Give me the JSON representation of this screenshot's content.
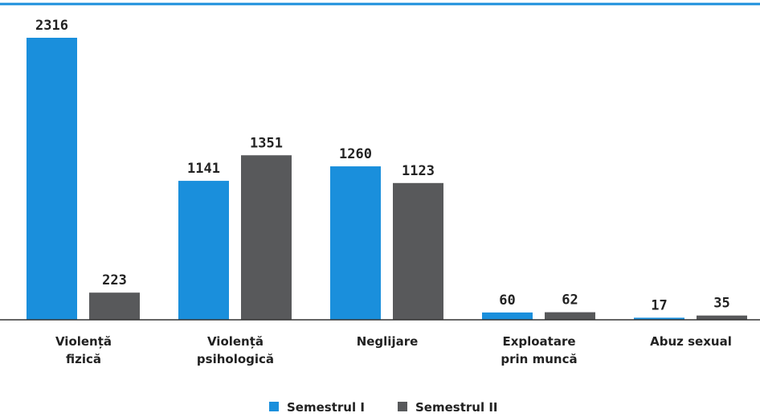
{
  "chart_data": {
    "type": "bar",
    "categories": [
      "Violență\nfizică",
      "Violență\npsihologică",
      "Neglijare",
      "Exploatare\nprin muncă",
      "Abuz sexual"
    ],
    "series": [
      {
        "name": "Semestrul I",
        "color": "#1a8fdc",
        "values": [
          2316,
          1141,
          1260,
          60,
          17
        ]
      },
      {
        "name": "Semestrul II",
        "color": "#58595b",
        "values": [
          223,
          1351,
          1123,
          62,
          35
        ]
      }
    ]
  }
}
